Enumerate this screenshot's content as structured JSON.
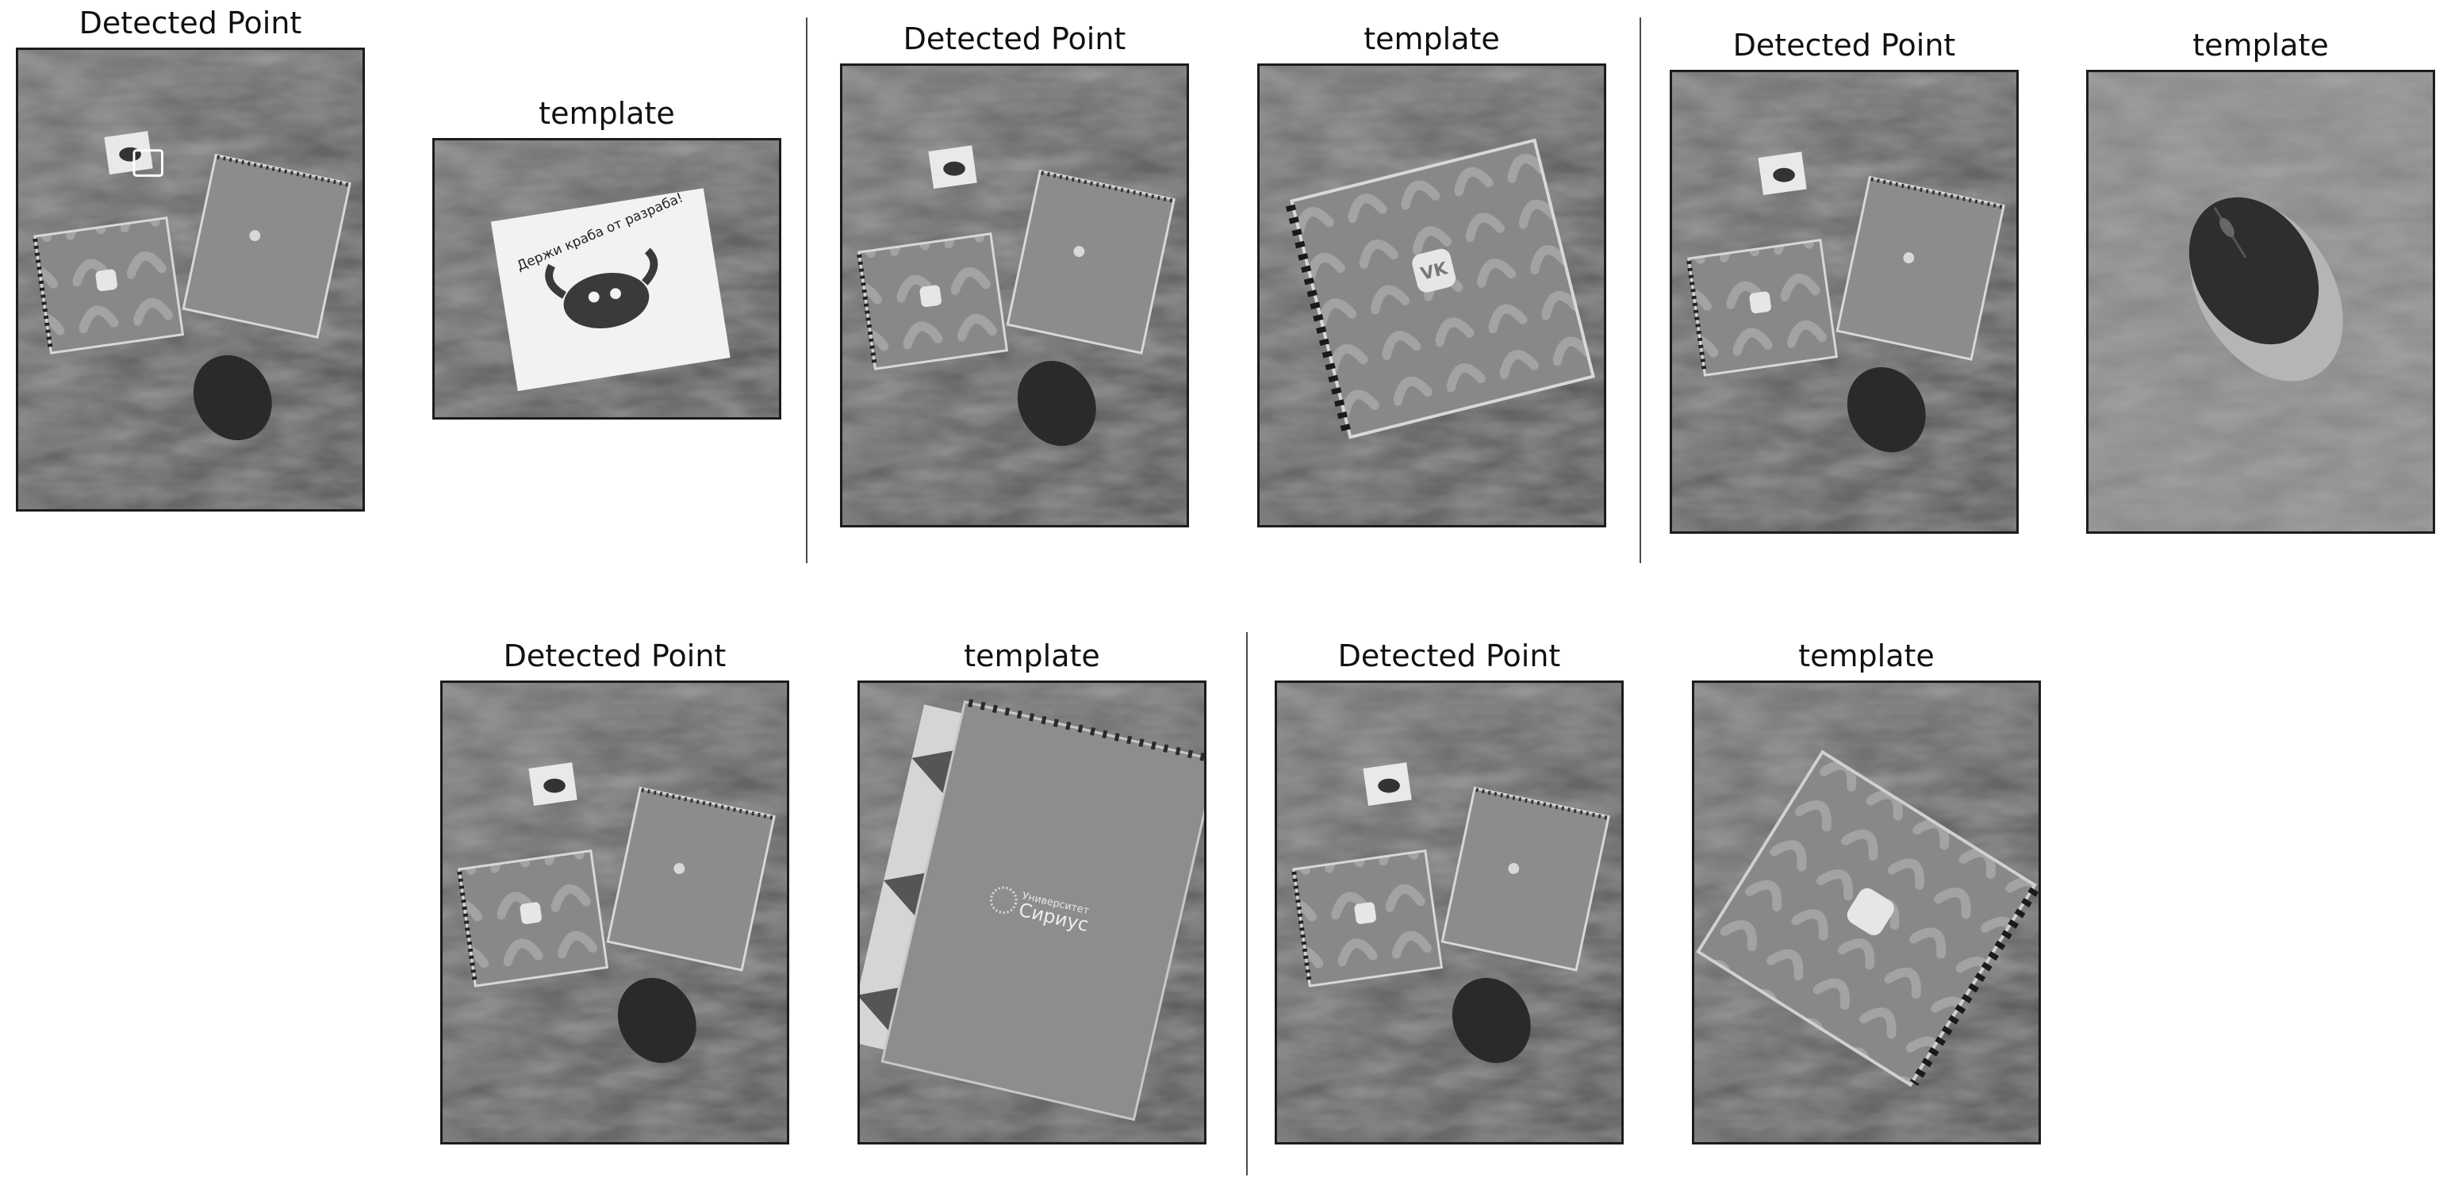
{
  "panels": [
    {
      "title": "Detected Point"
    },
    {
      "title": "template"
    },
    {
      "title": "Detected Point"
    },
    {
      "title": "template"
    },
    {
      "title": "Detected Point"
    },
    {
      "title": "template"
    },
    {
      "title": "Detected Point"
    },
    {
      "title": "template"
    },
    {
      "title": "Detected Point"
    },
    {
      "title": "template"
    }
  ],
  "notebook": {
    "brand_line1": "Университет",
    "brand_line2": "Сириус",
    "vk_logo": "VK"
  },
  "sticker": {
    "caption": "Держи краба от разраба!"
  },
  "colors": {
    "background": "#ffffff",
    "frame_border": "#1c1c1c",
    "blanket": "#6b6b6b",
    "notebook": "#8a8a8a",
    "mouse": "#2a2a2a",
    "detected_marker": "#ffffff"
  }
}
